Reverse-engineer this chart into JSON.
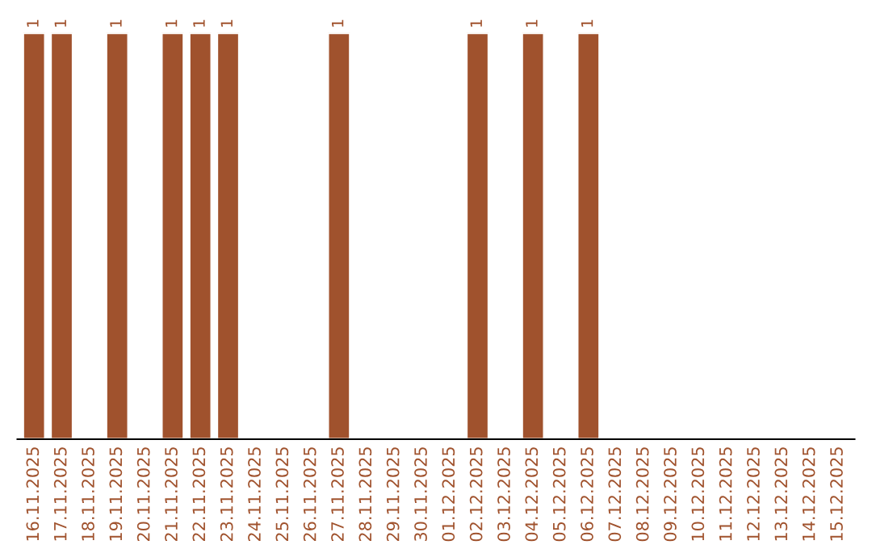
{
  "chart_data": {
    "type": "bar",
    "data_labels": true,
    "color": "#a0522d",
    "categories": [
      "16.11.2025",
      "17.11.2025",
      "18.11.2025",
      "19.11.2025",
      "20.11.2025",
      "21.11.2025",
      "22.11.2025",
      "23.11.2025",
      "24.11.2025",
      "25.11.2025",
      "26.11.2025",
      "27.11.2025",
      "28.11.2025",
      "29.11.2025",
      "30.11.2025",
      "01.12.2025",
      "02.12.2025",
      "03.12.2025",
      "04.12.2025",
      "05.12.2025",
      "06.12.2025",
      "07.12.2025",
      "08.12.2025",
      "09.12.2025",
      "10.12.2025",
      "11.12.2025",
      "12.12.2025",
      "13.12.2025",
      "14.12.2025",
      "15.12.2025"
    ],
    "values": [
      1,
      1,
      null,
      1,
      null,
      1,
      1,
      1,
      null,
      null,
      null,
      1,
      null,
      null,
      null,
      null,
      1,
      null,
      1,
      null,
      1,
      null,
      null,
      null,
      null,
      null,
      null,
      null,
      null,
      null
    ],
    "grid": false,
    "legend": false
  }
}
